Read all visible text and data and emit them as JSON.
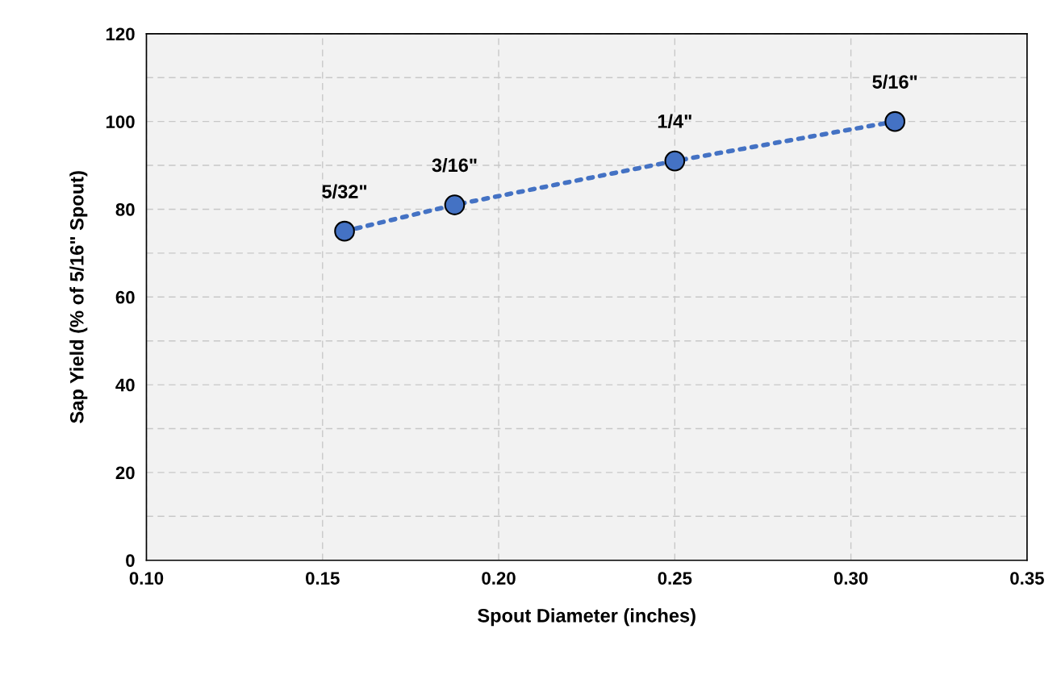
{
  "chart_data": {
    "type": "line",
    "xlabel": "Spout Diameter (inches)",
    "ylabel": "Sap Yield (% of 5/16\" Spout)",
    "x": [
      0.15625,
      0.1875,
      0.25,
      0.3125
    ],
    "series": [
      {
        "color": "#4472c4",
        "values": [
          75,
          81,
          91,
          100
        ]
      }
    ],
    "marker": "circle",
    "line_style": "dotted",
    "grid": true,
    "xlim": [
      0.1,
      0.35
    ],
    "xticks": [
      {
        "value": 0.1,
        "label": "0.10"
      },
      {
        "value": 0.15,
        "label": "0.15"
      },
      {
        "value": 0.2,
        "label": "0.20"
      },
      {
        "value": 0.25,
        "label": "0.25"
      },
      {
        "value": 0.3,
        "label": "0.30"
      },
      {
        "value": 0.35,
        "label": "0.35"
      }
    ],
    "ylim": [
      0,
      120
    ],
    "yticks": [
      0,
      {
        "value": 10,
        "label": null
      },
      20,
      {
        "value": 30,
        "label": null
      },
      40,
      {
        "value": 50,
        "label": null
      },
      60,
      {
        "value": 70,
        "label": null
      },
      80,
      {
        "value": 90,
        "label": null
      },
      100,
      {
        "value": 110,
        "label": null
      },
      120
    ],
    "annotations": [
      {
        "text": "5/32\"",
        "x": 0.15625,
        "y": 75
      },
      {
        "text": "3/16\"",
        "x": 0.1875,
        "y": 81
      },
      {
        "text": "1/4\"",
        "x": 0.25,
        "y": 91
      },
      {
        "text": "5/16\"",
        "x": 0.3125,
        "y": 100
      }
    ]
  }
}
